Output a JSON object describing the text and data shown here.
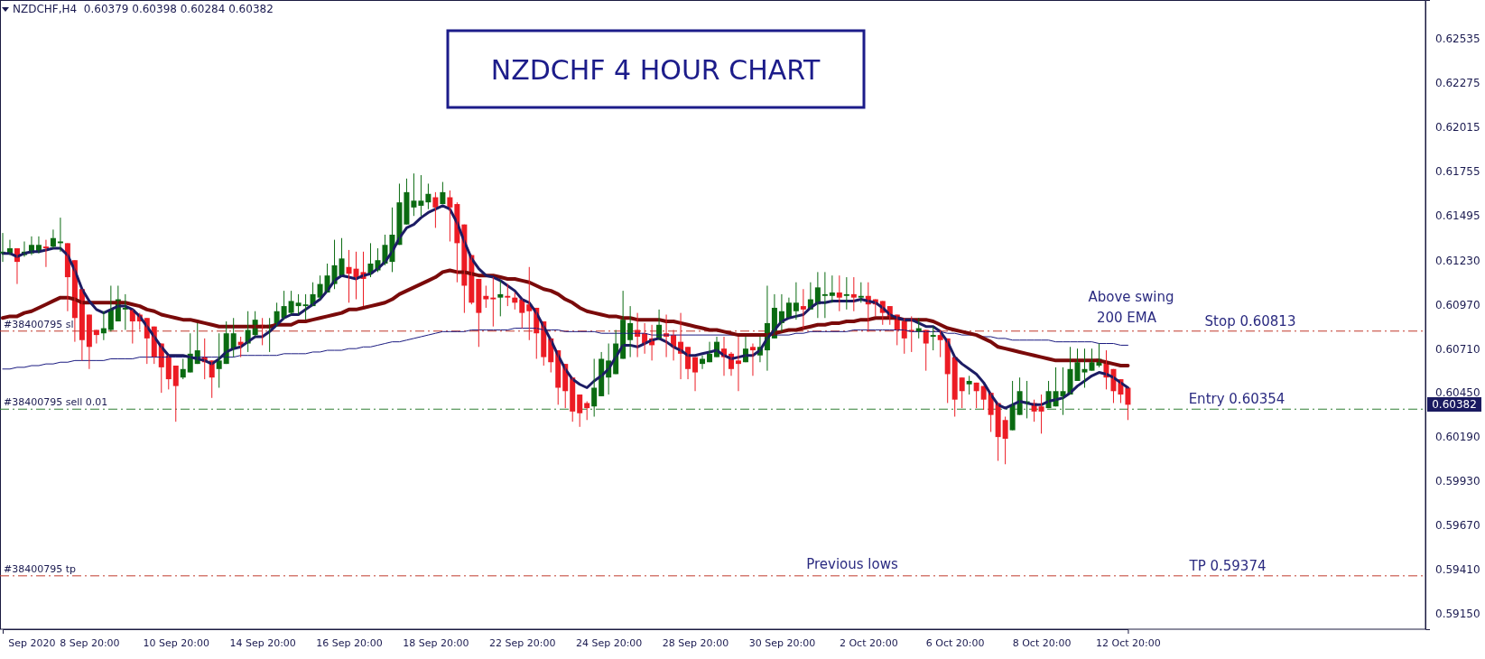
{
  "chart_data": {
    "type": "candlestick",
    "title": "NZDCHF 4 HOUR CHART",
    "subtitle": "NZDCHF,H4  0.60379 0.60398 0.60284 0.60382",
    "categories": [
      null,
      null,
      null,
      null,
      "Sep 2020",
      null,
      null,
      null,
      null,
      null,
      null,
      null,
      "8 Sep 20:00",
      null,
      null,
      null,
      null,
      null,
      null,
      null,
      null,
      null,
      null,
      null,
      "10 Sep 20:00",
      null,
      null,
      null,
      null,
      null,
      null,
      null,
      null,
      null,
      null,
      null,
      "14 Sep 20:00",
      null,
      null,
      null,
      null,
      null,
      null,
      null,
      null,
      null,
      null,
      null,
      "16 Sep 20:00",
      null,
      null,
      null,
      null,
      null,
      null,
      null,
      null,
      null,
      null,
      null,
      "18 Sep 20:00",
      null,
      null,
      null,
      null,
      null,
      null,
      null,
      null,
      null,
      null,
      null,
      "22 Sep 20:00",
      null,
      null,
      null,
      null,
      null,
      null,
      null,
      null,
      null,
      null,
      null,
      "24 Sep 20:00",
      null,
      null,
      null,
      null,
      null,
      null,
      null,
      null,
      null,
      null,
      null,
      "28 Sep 20:00",
      null,
      null,
      null,
      null,
      null,
      null,
      null,
      null,
      null,
      null,
      null,
      "30 Sep 20:00",
      null,
      null,
      null,
      null,
      null,
      null,
      null,
      null,
      null,
      null,
      null,
      "2 Oct 20:00",
      null,
      null,
      null,
      null,
      null,
      null,
      null,
      null,
      null,
      null,
      null,
      "6 Oct 20:00",
      null,
      null,
      null,
      null,
      null,
      null,
      null,
      null,
      null,
      null,
      null,
      "8 Oct 20:00",
      null,
      null,
      null,
      null,
      null,
      null,
      null,
      null,
      null,
      null,
      null,
      "12 Oct 20:00"
    ],
    "ohlc": [
      [
        0.6127,
        0.6139,
        0.6122,
        0.6128
      ],
      [
        0.6127,
        0.6135,
        0.6126,
        0.613
      ],
      [
        0.613,
        0.613,
        0.6109,
        0.6122
      ],
      [
        0.6126,
        0.6134,
        0.6125,
        0.6128
      ],
      [
        0.6127,
        0.6137,
        0.6126,
        0.6132
      ],
      [
        0.6128,
        0.6137,
        0.6127,
        0.6132
      ],
      [
        0.6131,
        0.6135,
        0.6119,
        0.613
      ],
      [
        0.6131,
        0.6141,
        0.613,
        0.6136
      ],
      [
        0.6133,
        0.6148,
        0.6128,
        0.6134
      ],
      [
        0.6133,
        0.6133,
        0.6093,
        0.6113
      ],
      [
        0.6123,
        0.6123,
        0.6075,
        0.6089
      ],
      [
        0.6106,
        0.6106,
        0.6064,
        0.6076
      ],
      [
        0.6091,
        0.6091,
        0.6059,
        0.6072
      ],
      [
        0.6082,
        0.6082,
        0.6074,
        0.6079
      ],
      [
        0.608,
        0.6093,
        0.6076,
        0.6083
      ],
      [
        0.6082,
        0.6108,
        0.6081,
        0.6094
      ],
      [
        0.6087,
        0.6108,
        0.6087,
        0.61
      ],
      [
        0.6094,
        0.6103,
        0.6082,
        0.6095
      ],
      [
        0.6094,
        0.6094,
        0.6074,
        0.6087
      ],
      [
        0.6091,
        0.6092,
        0.6082,
        0.6087
      ],
      [
        0.6089,
        0.6089,
        0.6062,
        0.6077
      ],
      [
        0.6084,
        0.6084,
        0.6062,
        0.6066
      ],
      [
        0.6074,
        0.6074,
        0.6045,
        0.606
      ],
      [
        0.6067,
        0.6067,
        0.6047,
        0.6053
      ],
      [
        0.6061,
        0.6061,
        0.6028,
        0.6049
      ],
      [
        0.6054,
        0.6065,
        0.6053,
        0.6059
      ],
      [
        0.6057,
        0.608,
        0.6057,
        0.6068
      ],
      [
        0.6062,
        0.6086,
        0.6062,
        0.607
      ],
      [
        0.6066,
        0.6077,
        0.6053,
        0.6063
      ],
      [
        0.6064,
        0.6064,
        0.6042,
        0.6054
      ],
      [
        0.6059,
        0.608,
        0.6048,
        0.6064
      ],
      [
        0.6062,
        0.6087,
        0.6062,
        0.608
      ],
      [
        0.6071,
        0.6089,
        0.6066,
        0.608
      ],
      [
        0.6075,
        0.6078,
        0.6066,
        0.6073
      ],
      [
        0.6074,
        0.6093,
        0.6069,
        0.6082
      ],
      [
        0.6079,
        0.6093,
        0.6078,
        0.6088
      ],
      [
        0.6085,
        0.6089,
        0.6073,
        0.6083
      ],
      [
        0.6083,
        0.6089,
        0.6069,
        0.6085
      ],
      [
        0.6085,
        0.6098,
        0.6084,
        0.6093
      ],
      [
        0.6089,
        0.6105,
        0.6088,
        0.6096
      ],
      [
        0.6092,
        0.6105,
        0.6091,
        0.6099
      ],
      [
        0.6096,
        0.6103,
        0.6091,
        0.6098
      ],
      [
        0.6096,
        0.6103,
        0.6088,
        0.6097
      ],
      [
        0.6096,
        0.611,
        0.6096,
        0.6103
      ],
      [
        0.6101,
        0.6114,
        0.61,
        0.6109
      ],
      [
        0.6104,
        0.6121,
        0.6104,
        0.6114
      ],
      [
        0.6109,
        0.6135,
        0.6106,
        0.612
      ],
      [
        0.6114,
        0.6136,
        0.6114,
        0.6124
      ],
      [
        0.6119,
        0.6129,
        0.6098,
        0.6115
      ],
      [
        0.6118,
        0.6128,
        0.61,
        0.6113
      ],
      [
        0.6116,
        0.6128,
        0.6096,
        0.6112
      ],
      [
        0.6115,
        0.6133,
        0.6113,
        0.6121
      ],
      [
        0.6117,
        0.613,
        0.6116,
        0.6123
      ],
      [
        0.6121,
        0.6138,
        0.612,
        0.6132
      ],
      [
        0.6122,
        0.6154,
        0.6116,
        0.6138
      ],
      [
        0.6132,
        0.6168,
        0.6132,
        0.6157
      ],
      [
        0.6144,
        0.6171,
        0.6144,
        0.6163
      ],
      [
        0.6154,
        0.6174,
        0.6149,
        0.6158
      ],
      [
        0.6155,
        0.6173,
        0.6149,
        0.6158
      ],
      [
        0.6157,
        0.6168,
        0.6153,
        0.6162
      ],
      [
        0.616,
        0.6163,
        0.6142,
        0.6154
      ],
      [
        0.6156,
        0.6169,
        0.6156,
        0.6163
      ],
      [
        0.616,
        0.6164,
        0.6134,
        0.6154
      ],
      [
        0.6156,
        0.6157,
        0.611,
        0.6133
      ],
      [
        0.6144,
        0.6144,
        0.6092,
        0.6108
      ],
      [
        0.6126,
        0.6126,
        0.6097,
        0.6098
      ],
      [
        0.6112,
        0.6112,
        0.6072,
        0.6092
      ],
      [
        0.6102,
        0.6108,
        0.6095,
        0.61
      ],
      [
        0.6101,
        0.6113,
        0.6084,
        0.61
      ],
      [
        0.6101,
        0.6111,
        0.609,
        0.6103
      ],
      [
        0.6102,
        0.6109,
        0.6096,
        0.6101
      ],
      [
        0.6101,
        0.6104,
        0.6094,
        0.6098
      ],
      [
        0.61,
        0.61,
        0.6083,
        0.6092
      ],
      [
        0.6097,
        0.6119,
        0.6076,
        0.6093
      ],
      [
        0.6095,
        0.6095,
        0.6065,
        0.608
      ],
      [
        0.6087,
        0.6087,
        0.6061,
        0.6066
      ],
      [
        0.6077,
        0.6077,
        0.6057,
        0.6063
      ],
      [
        0.607,
        0.607,
        0.6038,
        0.6048
      ],
      [
        0.6062,
        0.6062,
        0.6036,
        0.6046
      ],
      [
        0.6054,
        0.6054,
        0.6028,
        0.6034
      ],
      [
        0.6044,
        0.6044,
        0.6025,
        0.6033
      ],
      [
        0.6039,
        0.604,
        0.6029,
        0.6036
      ],
      [
        0.6037,
        0.6065,
        0.6031,
        0.6048
      ],
      [
        0.6043,
        0.6069,
        0.6043,
        0.6065
      ],
      [
        0.6054,
        0.6074,
        0.6044,
        0.6064
      ],
      [
        0.6056,
        0.6082,
        0.6056,
        0.6074
      ],
      [
        0.6065,
        0.6105,
        0.6065,
        0.6088
      ],
      [
        0.6076,
        0.6096,
        0.6066,
        0.6086
      ],
      [
        0.6082,
        0.6092,
        0.6066,
        0.6078
      ],
      [
        0.608,
        0.6086,
        0.6068,
        0.6074
      ],
      [
        0.6077,
        0.6085,
        0.6064,
        0.6073
      ],
      [
        0.6077,
        0.6094,
        0.6076,
        0.6085
      ],
      [
        0.608,
        0.6091,
        0.6066,
        0.6078
      ],
      [
        0.6079,
        0.6082,
        0.6064,
        0.6072
      ],
      [
        0.6075,
        0.6092,
        0.6053,
        0.6068
      ],
      [
        0.6072,
        0.6072,
        0.6053,
        0.6059
      ],
      [
        0.6066,
        0.6066,
        0.6046,
        0.6057
      ],
      [
        0.6062,
        0.6067,
        0.6059,
        0.6065
      ],
      [
        0.6063,
        0.6075,
        0.6063,
        0.6068
      ],
      [
        0.6066,
        0.6078,
        0.6066,
        0.6075
      ],
      [
        0.6071,
        0.6078,
        0.6055,
        0.6066
      ],
      [
        0.6068,
        0.6069,
        0.6055,
        0.6059
      ],
      [
        0.6064,
        0.6078,
        0.6046,
        0.6062
      ],
      [
        0.6063,
        0.6078,
        0.6063,
        0.6071
      ],
      [
        0.6072,
        0.6074,
        0.6055,
        0.607
      ],
      [
        0.6067,
        0.6078,
        0.6063,
        0.6072
      ],
      [
        0.607,
        0.6108,
        0.6058,
        0.6086
      ],
      [
        0.6077,
        0.6103,
        0.6077,
        0.6095
      ],
      [
        0.6086,
        0.6103,
        0.6081,
        0.6093
      ],
      [
        0.6089,
        0.6101,
        0.6089,
        0.6098
      ],
      [
        0.6093,
        0.611,
        0.6088,
        0.6098
      ],
      [
        0.6096,
        0.6106,
        0.6083,
        0.6094
      ],
      [
        0.6094,
        0.611,
        0.6094,
        0.61
      ],
      [
        0.6097,
        0.6116,
        0.6089,
        0.6107
      ],
      [
        0.6102,
        0.6116,
        0.6089,
        0.6103
      ],
      [
        0.6102,
        0.6114,
        0.6098,
        0.6104
      ],
      [
        0.6104,
        0.6114,
        0.6093,
        0.6101
      ],
      [
        0.6102,
        0.6113,
        0.6094,
        0.6103
      ],
      [
        0.6103,
        0.6113,
        0.6093,
        0.6101
      ],
      [
        0.6101,
        0.611,
        0.6098,
        0.6102
      ],
      [
        0.6102,
        0.611,
        0.6081,
        0.6097
      ],
      [
        0.61,
        0.61,
        0.609,
        0.6097
      ],
      [
        0.6099,
        0.6099,
        0.6085,
        0.6092
      ],
      [
        0.6096,
        0.6096,
        0.6085,
        0.6089
      ],
      [
        0.6091,
        0.6091,
        0.6073,
        0.6082
      ],
      [
        0.6087,
        0.6089,
        0.6068,
        0.6077
      ],
      [
        0.6082,
        0.609,
        0.6069,
        0.6081
      ],
      [
        0.6081,
        0.6089,
        0.6077,
        0.6083
      ],
      [
        0.6082,
        0.6082,
        0.6058,
        0.6074
      ],
      [
        0.6078,
        0.6084,
        0.607,
        0.6079
      ],
      [
        0.6079,
        0.6082,
        0.6066,
        0.6076
      ],
      [
        0.6077,
        0.6077,
        0.6039,
        0.6056
      ],
      [
        0.6066,
        0.6066,
        0.6031,
        0.6041
      ],
      [
        0.6054,
        0.6054,
        0.6036,
        0.6046
      ],
      [
        0.605,
        0.6055,
        0.6044,
        0.6052
      ],
      [
        0.6051,
        0.6051,
        0.6036,
        0.6046
      ],
      [
        0.6049,
        0.6049,
        0.6035,
        0.6041
      ],
      [
        0.6045,
        0.6045,
        0.6022,
        0.6032
      ],
      [
        0.6039,
        0.6039,
        0.6005,
        0.6019
      ],
      [
        0.6029,
        0.6031,
        0.6003,
        0.6018
      ],
      [
        0.6023,
        0.6052,
        0.6023,
        0.6038
      ],
      [
        0.6032,
        0.6054,
        0.6032,
        0.6046
      ],
      [
        0.6039,
        0.6052,
        0.603,
        0.604
      ],
      [
        0.6039,
        0.6041,
        0.6028,
        0.6034
      ],
      [
        0.6037,
        0.6044,
        0.6021,
        0.6034
      ],
      [
        0.6036,
        0.6052,
        0.6036,
        0.6046
      ],
      [
        0.6037,
        0.606,
        0.6037,
        0.6046
      ],
      [
        0.6043,
        0.606,
        0.6032,
        0.6046
      ],
      [
        0.6044,
        0.6072,
        0.6044,
        0.6059
      ],
      [
        0.6052,
        0.6071,
        0.6052,
        0.6063
      ],
      [
        0.6057,
        0.6071,
        0.6048,
        0.6059
      ],
      [
        0.6058,
        0.6071,
        0.6058,
        0.6063
      ],
      [
        0.6061,
        0.6074,
        0.606,
        0.6065
      ],
      [
        0.6063,
        0.607,
        0.6047,
        0.6054
      ],
      [
        0.6059,
        0.6059,
        0.6039,
        0.6046
      ],
      [
        0.6053,
        0.6053,
        0.6039,
        0.6044
      ],
      [
        0.6048,
        0.6048,
        0.6029,
        0.6038
      ]
    ],
    "colors": [
      "#0b6b12",
      "#0b6b12",
      "#ec1c24",
      "#0b6b12",
      "#0b6b12",
      "#0b6b12",
      "#ec1c24",
      "#0b6b12",
      "#0b6b12",
      "#ec1c24",
      "#ec1c24",
      "#ec1c24",
      "#ec1c24",
      "#ec1c24",
      "#0b6b12",
      "#0b6b12",
      "#0b6b12",
      "#0b6b12",
      "#ec1c24",
      "#ec1c24",
      "#ec1c24",
      "#ec1c24",
      "#ec1c24",
      "#ec1c24",
      "#ec1c24",
      "#0b6b12",
      "#0b6b12",
      "#0b6b12",
      "#ec1c24",
      "#ec1c24",
      "#0b6b12",
      "#0b6b12",
      "#0b6b12",
      "#ec1c24",
      "#0b6b12",
      "#0b6b12",
      "#ec1c24",
      "#0b6b12",
      "#0b6b12",
      "#0b6b12",
      "#0b6b12",
      "#0b6b12",
      "#0b6b12",
      "#0b6b12",
      "#0b6b12",
      "#0b6b12",
      "#0b6b12",
      "#0b6b12",
      "#ec1c24",
      "#ec1c24",
      "#ec1c24",
      "#0b6b12",
      "#0b6b12",
      "#0b6b12",
      "#0b6b12",
      "#0b6b12",
      "#0b6b12",
      "#0b6b12",
      "#0b6b12",
      "#0b6b12",
      "#ec1c24",
      "#0b6b12",
      "#ec1c24",
      "#ec1c24",
      "#ec1c24",
      "#ec1c24",
      "#ec1c24",
      "#ec1c24",
      "#ec1c24",
      "#0b6b12",
      "#ec1c24",
      "#ec1c24",
      "#ec1c24",
      "#ec1c24",
      "#ec1c24",
      "#ec1c24",
      "#ec1c24",
      "#ec1c24",
      "#ec1c24",
      "#ec1c24",
      "#ec1c24",
      "#ec1c24",
      "#0b6b12",
      "#0b6b12",
      "#0b6b12",
      "#0b6b12",
      "#0b6b12",
      "#0b6b12",
      "#ec1c24",
      "#ec1c24",
      "#ec1c24",
      "#0b6b12",
      "#ec1c24",
      "#ec1c24",
      "#ec1c24",
      "#ec1c24",
      "#ec1c24",
      "#0b6b12",
      "#0b6b12",
      "#0b6b12",
      "#ec1c24",
      "#ec1c24",
      "#ec1c24",
      "#0b6b12",
      "#ec1c24",
      "#0b6b12",
      "#0b6b12",
      "#0b6b12",
      "#0b6b12",
      "#0b6b12",
      "#0b6b12",
      "#ec1c24",
      "#0b6b12",
      "#0b6b12",
      "#0b6b12",
      "#0b6b12",
      "#ec1c24",
      "#0b6b12",
      "#ec1c24",
      "#0b6b12",
      "#ec1c24",
      "#ec1c24",
      "#ec1c24",
      "#ec1c24",
      "#ec1c24",
      "#ec1c24",
      "#ec1c24",
      "#0b6b12",
      "#ec1c24",
      "#0b6b12",
      "#ec1c24",
      "#ec1c24",
      "#ec1c24",
      "#ec1c24",
      "#0b6b12",
      "#ec1c24",
      "#ec1c24",
      "#ec1c24",
      "#ec1c24",
      "#ec1c24",
      "#0b6b12",
      "#0b6b12",
      "#0b6b12",
      "#ec1c24",
      "#ec1c24",
      "#0b6b12",
      "#0b6b12",
      "#0b6b12",
      "#0b6b12",
      "#0b6b12",
      "#0b6b12",
      "#0b6b12",
      "#0b6b12",
      "#ec1c24",
      "#ec1c24",
      "#ec1c24",
      "#ec1c24"
    ],
    "series": [
      {
        "type": "line",
        "color": "#1c1c64",
        "values": [
          0.6127,
          0.6127,
          0.6125,
          0.6127,
          0.6128,
          0.6128,
          0.6129,
          0.613,
          0.613,
          0.6126,
          0.6117,
          0.6106,
          0.6099,
          0.6094,
          0.6092,
          0.6094,
          0.6096,
          0.6096,
          0.6094,
          0.609,
          0.6084,
          0.6078,
          0.6072,
          0.6067,
          0.6067,
          0.6067,
          0.6066,
          0.6065,
          0.6064,
          0.6062,
          0.6065,
          0.6069,
          0.6071,
          0.6072,
          0.6075,
          0.6078,
          0.6078,
          0.6081,
          0.6085,
          0.6089,
          0.6091,
          0.6091,
          0.6094,
          0.6097,
          0.61,
          0.6105,
          0.6111,
          0.6114,
          0.6113,
          0.6112,
          0.6114,
          0.6115,
          0.6118,
          0.6122,
          0.6128,
          0.6136,
          0.6142,
          0.6144,
          0.6148,
          0.6151,
          0.6153,
          0.6155,
          0.6153,
          0.6145,
          0.6134,
          0.6124,
          0.6118,
          0.6114,
          0.6113,
          0.6111,
          0.6108,
          0.6105,
          0.61,
          0.6098,
          0.6092,
          0.6084,
          0.6076,
          0.6067,
          0.6059,
          0.6053,
          0.605,
          0.6048,
          0.6052,
          0.6055,
          0.6059,
          0.6066,
          0.6073,
          0.6073,
          0.6072,
          0.6074,
          0.6076,
          0.6077,
          0.6075,
          0.6072,
          0.607,
          0.6067,
          0.6067,
          0.6068,
          0.6069,
          0.607,
          0.6067,
          0.6065,
          0.6066,
          0.6067,
          0.6067,
          0.607,
          0.6077,
          0.6082,
          0.6087,
          0.6089,
          0.609,
          0.6091,
          0.6095,
          0.6098,
          0.6098,
          0.6099,
          0.6099,
          0.6099,
          0.6099,
          0.61,
          0.6099,
          0.6098,
          0.6095,
          0.6091,
          0.6089,
          0.6088,
          0.6088,
          0.6086,
          0.6084,
          0.6084,
          0.6081,
          0.6075,
          0.6066,
          0.6062,
          0.6059,
          0.6056,
          0.6051,
          0.6044,
          0.6038,
          0.6036,
          0.6038,
          0.604,
          0.6039,
          0.6038,
          0.6038,
          0.604,
          0.6041,
          0.6042,
          0.6045,
          0.6049,
          0.6052,
          0.6055,
          0.6057,
          0.6056,
          0.6054,
          0.6051,
          0.6048
        ]
      },
      {
        "type": "line",
        "color": "#7a0a0a",
        "values": [
          0.6089,
          0.609,
          0.609,
          0.6092,
          0.6093,
          0.6095,
          0.6097,
          0.6099,
          0.6101,
          0.6101,
          0.61,
          0.6098,
          0.6098,
          0.6098,
          0.6098,
          0.6098,
          0.6098,
          0.6098,
          0.6097,
          0.6096,
          0.6094,
          0.6093,
          0.6091,
          0.609,
          0.6089,
          0.6088,
          0.6088,
          0.6087,
          0.6086,
          0.6085,
          0.6084,
          0.6084,
          0.6084,
          0.6084,
          0.6084,
          0.6084,
          0.6084,
          0.6084,
          0.6085,
          0.6085,
          0.6085,
          0.6087,
          0.6087,
          0.6088,
          0.6089,
          0.609,
          0.6091,
          0.6092,
          0.6094,
          0.6094,
          0.6095,
          0.6096,
          0.6097,
          0.6098,
          0.61,
          0.6103,
          0.6105,
          0.6107,
          0.6109,
          0.6111,
          0.6113,
          0.6116,
          0.6117,
          0.6116,
          0.6116,
          0.6115,
          0.6114,
          0.6114,
          0.6114,
          0.6113,
          0.6112,
          0.6112,
          0.6111,
          0.611,
          0.6108,
          0.6106,
          0.6105,
          0.6103,
          0.61,
          0.6098,
          0.6095,
          0.6093,
          0.6092,
          0.6091,
          0.609,
          0.609,
          0.6089,
          0.6089,
          0.6088,
          0.6088,
          0.6088,
          0.6088,
          0.6087,
          0.6087,
          0.6086,
          0.6085,
          0.6084,
          0.6083,
          0.6082,
          0.6082,
          0.6081,
          0.608,
          0.6079,
          0.6079,
          0.6079,
          0.6079,
          0.6079,
          0.608,
          0.6081,
          0.6082,
          0.6082,
          0.6083,
          0.6084,
          0.6085,
          0.6085,
          0.6086,
          0.6086,
          0.6087,
          0.6087,
          0.6088,
          0.6088,
          0.6089,
          0.6089,
          0.6089,
          0.6089,
          0.6088,
          0.6088,
          0.6088,
          0.6088,
          0.6087,
          0.6085,
          0.6083,
          0.6082,
          0.6081,
          0.608,
          0.6079,
          0.6077,
          0.6075,
          0.6072,
          0.6071,
          0.607,
          0.6069,
          0.6068,
          0.6067,
          0.6066,
          0.6065,
          0.6064,
          0.6064,
          0.6064,
          0.6064,
          0.6064,
          0.6064,
          0.6064,
          0.6063,
          0.6062,
          0.6061,
          0.6061
        ]
      },
      {
        "type": "line",
        "color": "#1a1a80",
        "values": [
          0.6059,
          0.6059,
          0.606,
          0.606,
          0.6061,
          0.6061,
          0.6062,
          0.6062,
          0.6063,
          0.6063,
          0.6064,
          0.6064,
          0.6064,
          0.6064,
          0.6064,
          0.6065,
          0.6065,
          0.6065,
          0.6065,
          0.6066,
          0.6066,
          0.6066,
          0.6066,
          0.6066,
          0.6066,
          0.6066,
          0.6066,
          0.6066,
          0.6066,
          0.6066,
          0.6066,
          0.6066,
          0.6066,
          0.6067,
          0.6067,
          0.6067,
          0.6067,
          0.6067,
          0.6067,
          0.6068,
          0.6068,
          0.6068,
          0.6068,
          0.6069,
          0.6069,
          0.607,
          0.607,
          0.607,
          0.6071,
          0.6071,
          0.6072,
          0.6072,
          0.6073,
          0.6074,
          0.6075,
          0.6075,
          0.6076,
          0.6077,
          0.6078,
          0.6079,
          0.608,
          0.6081,
          0.6081,
          0.6081,
          0.6081,
          0.6082,
          0.6082,
          0.6082,
          0.6082,
          0.6082,
          0.6082,
          0.6083,
          0.6083,
          0.6083,
          0.6083,
          0.6082,
          0.6082,
          0.6082,
          0.6081,
          0.6081,
          0.6081,
          0.6081,
          0.6081,
          0.608,
          0.608,
          0.608,
          0.608,
          0.608,
          0.608,
          0.608,
          0.6079,
          0.6079,
          0.6079,
          0.6079,
          0.6079,
          0.6079,
          0.6079,
          0.6079,
          0.6079,
          0.6079,
          0.6079,
          0.6079,
          0.6079,
          0.6079,
          0.6079,
          0.6079,
          0.6079,
          0.6079,
          0.6079,
          0.6079,
          0.608,
          0.608,
          0.6081,
          0.6081,
          0.6081,
          0.6081,
          0.6081,
          0.6081,
          0.6082,
          0.6082,
          0.6082,
          0.6082,
          0.6082,
          0.6082,
          0.6082,
          0.6082,
          0.6081,
          0.6081,
          0.6081,
          0.6081,
          0.6081,
          0.608,
          0.608,
          0.6079,
          0.6079,
          0.6079,
          0.6078,
          0.6078,
          0.6077,
          0.6077,
          0.6076,
          0.6076,
          0.6076,
          0.6076,
          0.6076,
          0.6076,
          0.6075,
          0.6075,
          0.6075,
          0.6075,
          0.6075,
          0.6075,
          0.6074,
          0.6074,
          0.6074,
          0.6073,
          0.6073
        ]
      }
    ],
    "ylim": [
      0.5906,
      0.6276
    ],
    "yticks": [
      0.62535,
      0.62275,
      0.62015,
      0.61755,
      0.61495,
      {
        "value": 0.6123,
        "label": "0.61230"
      },
      {
        "value": 0.6097,
        "label": "0.60970"
      },
      {
        "value": 0.6071,
        "label": "0.60710"
      },
      {
        "value": 0.6045,
        "label": "0.60450"
      },
      {
        "value": 0.6019,
        "label": "0.60190"
      },
      {
        "value": 0.5993,
        "label": "0.59930"
      },
      {
        "value": 0.5967,
        "label": "0.59670"
      },
      {
        "value": 0.5941,
        "label": "0.59410"
      },
      {
        "value": 0.5915,
        "label": "0.59150"
      }
    ],
    "ref_lines": [
      {
        "axis": "y",
        "value": 0.60813,
        "label": "#38400795 sl",
        "color": "#c0392b",
        "line_style": "dashed"
      },
      {
        "axis": "y",
        "value": 0.60354,
        "label": "#38400795 sell 0.01",
        "color": "#2e7d32",
        "line_style": "dashed"
      },
      {
        "axis": "y",
        "value": 0.59374,
        "label": "#38400795 tp",
        "color": "#c0392b",
        "line_style": "dashed"
      }
    ],
    "annotations": [
      "Above swing",
      "200 EMA",
      {
        "text": "Stop 0.60813",
        "y": 0.60813
      },
      {
        "text": "Entry 0.60354",
        "y": 0.60354
      },
      {
        "text": "TP 0.59374",
        "y": 0.59374
      },
      "Previous lows",
      "0.60382"
    ]
  }
}
